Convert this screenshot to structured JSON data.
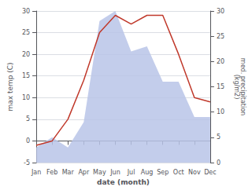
{
  "chart_data": {
    "type": "line",
    "xlabel": "date (month)",
    "ylabel": "max temp (C)",
    "y2label": "med. precipitation\n(kg/m2)",
    "categories": [
      "Jan",
      "Feb",
      "Mar",
      "Apr",
      "May",
      "Jun",
      "Jul",
      "Aug",
      "Sep",
      "Oct",
      "Nov",
      "Dec"
    ],
    "series": [
      {
        "type": "line",
        "color": "#c0392b",
        "values": [
          -1,
          0,
          5,
          14,
          25,
          29,
          27,
          29,
          29,
          20,
          10,
          9
        ]
      },
      {
        "type": "area",
        "color": "#b8c4e8",
        "axis": "y2",
        "values": [
          3,
          5,
          3,
          8,
          28,
          30,
          22,
          23,
          16,
          16,
          9,
          9
        ]
      }
    ],
    "ylim": [
      -5,
      30
    ],
    "yticks": [
      -5,
      0,
      5,
      10,
      15,
      20,
      25,
      30
    ],
    "y2lim": [
      0,
      30
    ],
    "y2ticks": [
      0,
      5,
      10,
      15,
      20,
      25,
      30
    ],
    "grid": true
  }
}
